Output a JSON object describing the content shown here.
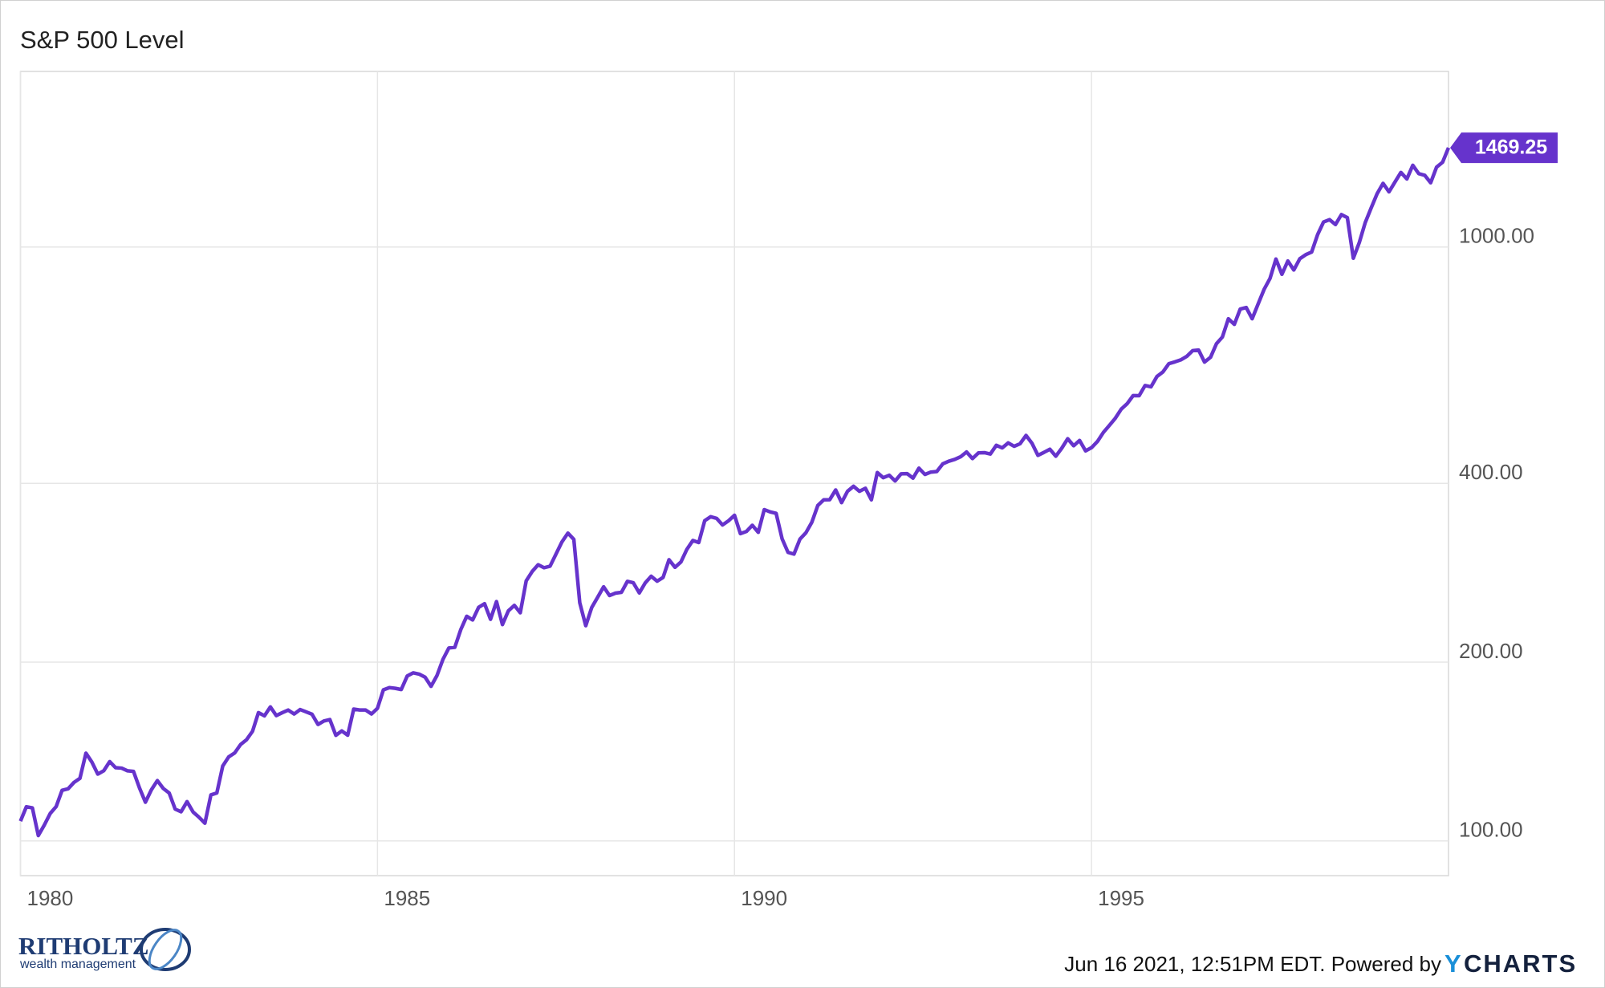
{
  "chart_data": {
    "type": "line",
    "title": "S&P 500 Level",
    "log_scale": true,
    "grid": true,
    "xlim": [
      1980,
      2000
    ],
    "xticks": [
      1980,
      1985,
      1990,
      1995
    ],
    "ylim": [
      87.4,
      1975
    ],
    "yticks": [
      {
        "value": 100,
        "label": "100.00"
      },
      {
        "value": 200,
        "label": "200.00"
      },
      {
        "value": 400,
        "label": "400.00"
      },
      {
        "value": 1000,
        "label": "1000.00"
      }
    ],
    "x": [
      1980,
      1980.083,
      1980.167,
      1980.25,
      1980.333,
      1980.417,
      1980.5,
      1980.583,
      1980.667,
      1980.75,
      1980.833,
      1980.917,
      1981,
      1981.083,
      1981.167,
      1981.25,
      1981.333,
      1981.417,
      1981.5,
      1981.583,
      1981.667,
      1981.75,
      1981.833,
      1981.917,
      1982,
      1982.083,
      1982.167,
      1982.25,
      1982.333,
      1982.417,
      1982.5,
      1982.583,
      1982.667,
      1982.75,
      1982.833,
      1982.917,
      1983,
      1983.083,
      1983.167,
      1983.25,
      1983.333,
      1983.417,
      1983.5,
      1983.583,
      1983.667,
      1983.75,
      1983.833,
      1983.917,
      1984,
      1984.083,
      1984.167,
      1984.25,
      1984.333,
      1984.417,
      1984.5,
      1984.583,
      1984.667,
      1984.75,
      1984.833,
      1984.917,
      1985,
      1985.083,
      1985.167,
      1985.25,
      1985.333,
      1985.417,
      1985.5,
      1985.583,
      1985.667,
      1985.75,
      1985.833,
      1985.917,
      1986,
      1986.083,
      1986.167,
      1986.25,
      1986.333,
      1986.417,
      1986.5,
      1986.583,
      1986.667,
      1986.75,
      1986.833,
      1986.917,
      1987,
      1987.083,
      1987.167,
      1987.25,
      1987.333,
      1987.417,
      1987.5,
      1987.583,
      1987.667,
      1987.75,
      1987.833,
      1987.917,
      1988,
      1988.083,
      1988.167,
      1988.25,
      1988.333,
      1988.417,
      1988.5,
      1988.583,
      1988.667,
      1988.75,
      1988.833,
      1988.917,
      1989,
      1989.083,
      1989.167,
      1989.25,
      1989.333,
      1989.417,
      1989.5,
      1989.583,
      1989.667,
      1989.75,
      1989.833,
      1989.917,
      1990,
      1990.083,
      1990.167,
      1990.25,
      1990.333,
      1990.417,
      1990.5,
      1990.583,
      1990.667,
      1990.75,
      1990.833,
      1990.917,
      1991,
      1991.083,
      1991.167,
      1991.25,
      1991.333,
      1991.417,
      1991.5,
      1991.583,
      1991.667,
      1991.75,
      1991.833,
      1991.917,
      1992,
      1992.083,
      1992.167,
      1992.25,
      1992.333,
      1992.417,
      1992.5,
      1992.583,
      1992.667,
      1992.75,
      1992.833,
      1992.917,
      1993,
      1993.083,
      1993.167,
      1993.25,
      1993.333,
      1993.417,
      1993.5,
      1993.583,
      1993.667,
      1993.75,
      1993.833,
      1993.917,
      1994,
      1994.083,
      1994.167,
      1994.25,
      1994.333,
      1994.417,
      1994.5,
      1994.583,
      1994.667,
      1994.75,
      1994.833,
      1994.917,
      1995,
      1995.083,
      1995.167,
      1995.25,
      1995.333,
      1995.417,
      1995.5,
      1995.583,
      1995.667,
      1995.75,
      1995.833,
      1995.917,
      1996,
      1996.083,
      1996.167,
      1996.25,
      1996.333,
      1996.417,
      1996.5,
      1996.583,
      1996.667,
      1996.75,
      1996.833,
      1996.917,
      1997,
      1997.083,
      1997.167,
      1997.25,
      1997.333,
      1997.417,
      1997.5,
      1997.583,
      1997.667,
      1997.75,
      1997.833,
      1997.917,
      1998,
      1998.083,
      1998.167,
      1998.25,
      1998.333,
      1998.417,
      1998.5,
      1998.583,
      1998.667,
      1998.75,
      1998.833,
      1998.917,
      1999,
      1999.083,
      1999.167,
      1999.25,
      1999.333,
      1999.417,
      1999.5,
      1999.583,
      1999.667,
      1999.75,
      1999.833,
      1999.917,
      2000
    ],
    "series": [
      {
        "name": "S&P 500 Level",
        "color": "#6633cc",
        "values": [
          107.94,
          114.16,
          113.66,
          102.09,
          106.29,
          111.24,
          114.24,
          121.67,
          122.38,
          125.46,
          127.47,
          140.52,
          135.76,
          129.55,
          131.27,
          136.0,
          132.81,
          132.59,
          131.21,
          130.92,
          122.79,
          116.18,
          121.89,
          126.35,
          122.55,
          120.4,
          113.11,
          111.96,
          116.44,
          111.88,
          109.61,
          107.09,
          119.51,
          120.42,
          133.71,
          138.54,
          140.64,
          145.3,
          148.06,
          152.96,
          164.42,
          162.39,
          168.11,
          162.56,
          164.4,
          166.07,
          163.55,
          166.4,
          164.93,
          163.41,
          157.06,
          159.18,
          160.05,
          150.55,
          153.18,
          150.66,
          166.68,
          166.1,
          166.09,
          163.58,
          167.24,
          179.63,
          181.18,
          180.66,
          179.83,
          189.55,
          191.85,
          190.92,
          188.63,
          182.08,
          189.82,
          202.17,
          211.28,
          211.78,
          226.92,
          238.9,
          235.52,
          247.35,
          250.84,
          236.12,
          252.93,
          231.32,
          243.98,
          249.22,
          242.17,
          274.08,
          284.2,
          291.7,
          288.36,
          290.1,
          304.0,
          318.66,
          329.8,
          321.83,
          251.79,
          230.3,
          247.08,
          257.07,
          267.82,
          258.89,
          261.33,
          262.16,
          273.5,
          272.02,
          261.52,
          271.91,
          278.97,
          273.7,
          277.72,
          297.47,
          288.86,
          294.87,
          309.64,
          320.52,
          317.98,
          346.08,
          351.45,
          349.15,
          340.36,
          345.99,
          353.4,
          329.08,
          331.89,
          339.94,
          330.8,
          361.23,
          358.02,
          356.15,
          322.56,
          306.05,
          304.0,
          322.22,
          330.22,
          343.93,
          367.07,
          375.22,
          375.35,
          389.83,
          371.16,
          387.81,
          395.43,
          387.86,
          392.45,
          375.22,
          417.09,
          408.79,
          412.7,
          403.69,
          414.95,
          415.35,
          408.14,
          424.21,
          414.03,
          417.8,
          418.68,
          431.35,
          435.71,
          438.78,
          443.38,
          451.67,
          440.19,
          450.19,
          450.53,
          448.13,
          463.56,
          458.93,
          467.83,
          461.79,
          466.45,
          481.61,
          467.14,
          445.77,
          450.91,
          456.5,
          444.27,
          458.26,
          475.49,
          462.69,
          472.35,
          453.69,
          459.27,
          470.42,
          487.39,
          500.71,
          514.71,
          533.4,
          544.75,
          562.06,
          561.88,
          584.41,
          581.5,
          605.37,
          615.93,
          636.02,
          640.43,
          645.5,
          654.17,
          669.12,
          670.63,
          639.95,
          651.99,
          687.31,
          705.27,
          757.02,
          740.74,
          786.16,
          790.82,
          757.12,
          801.34,
          848.28,
          885.14,
          954.29,
          899.47,
          947.28,
          914.62,
          955.4,
          970.43,
          980.28,
          1049.34,
          1101.75,
          1111.75,
          1090.82,
          1133.84,
          1120.67,
          957.28,
          1017.01,
          1098.67,
          1163.63,
          1229.23,
          1279.64,
          1238.33,
          1286.37,
          1335.18,
          1301.84,
          1372.71,
          1328.72,
          1320.41,
          1282.71,
          1362.93,
          1388.91,
          1469.25
        ]
      }
    ]
  },
  "footer": {
    "timestamp": "Jun 16 2021, 12:51PM EDT. Powered by",
    "brand_y": "Y",
    "brand_rest": "CHARTS"
  },
  "logo": {
    "name": "RITHOLTZ",
    "tagline": "wealth management"
  }
}
